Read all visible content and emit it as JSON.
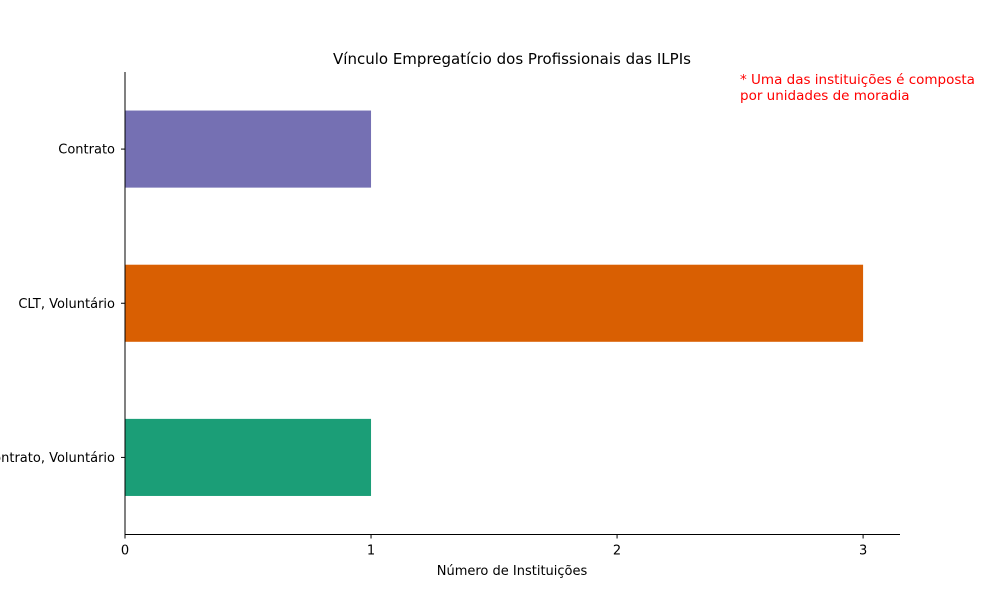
{
  "chart_data": {
    "type": "bar",
    "orientation": "horizontal",
    "title": "Vínculo Empregatício dos Profissionais das ILPIs",
    "xlabel": "Número de Instituições",
    "ylabel": "",
    "xlim": [
      0,
      3.15
    ],
    "xticks": [
      "0",
      "1",
      "2",
      "3"
    ],
    "grid": false,
    "categories": [
      "Contrato, Voluntário",
      "CLT, Voluntário",
      "Contrato"
    ],
    "values": [
      1,
      3,
      1
    ],
    "colors": [
      "#1b9e77",
      "#d95f02",
      "#7570b3"
    ],
    "annotation": {
      "lines": [
        "* Uma das instituições é composta",
        "por unidades de moradia"
      ],
      "color": "#ff0000"
    }
  }
}
